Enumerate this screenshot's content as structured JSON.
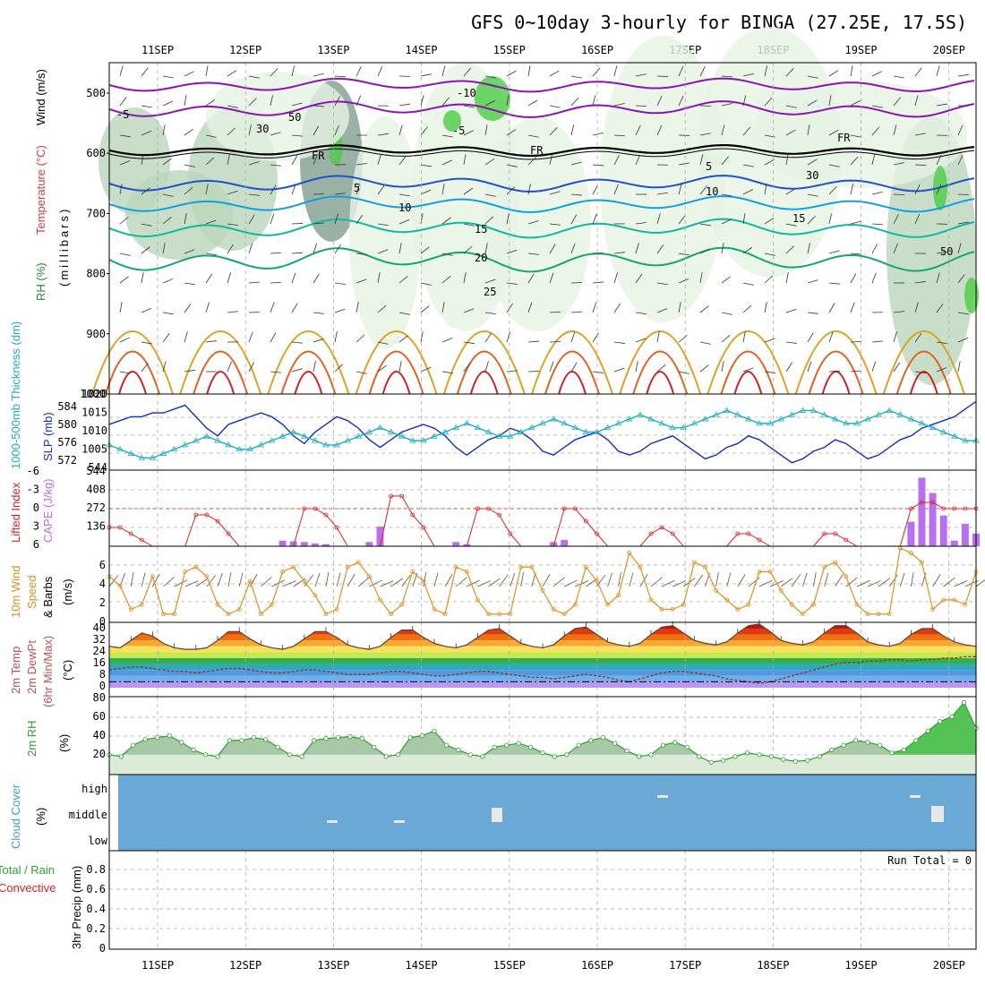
{
  "title": "GFS 0~10day 3-hourly for BINGA (27.25E, 17.5S)",
  "days": [
    "11SEP",
    "12SEP",
    "13SEP",
    "14SEP",
    "15SEP",
    "16SEP",
    "17SEP",
    "18SEP",
    "19SEP",
    "20SEP"
  ],
  "colors": {
    "frame": "#000000",
    "grid": "#aaaaaa",
    "rh_green": "#4ccc44",
    "rh_light": "#e6f2e2",
    "rh_mid": "#bcd6bc",
    "rh_dark": "#7f9f8f",
    "temp_cold": "#8a14b4",
    "freezing": "#000000",
    "temp_5": "#2050d0",
    "temp_10": "#10a0e0",
    "temp_15": "#10b8a0",
    "temp_20": "#10a870",
    "temp_25": "#e0a020",
    "temp_hot": "#e06020",
    "temp_very_hot": "#d02020",
    "slp": "#1030c0",
    "thickness": "#20b0c0",
    "lifted": "#e02020",
    "cape": "#b870f0",
    "wind": "#e09020",
    "barb": "#705030",
    "dewpt": "#8a3a20",
    "rh2m": "#30a030",
    "cloud": "#6aa8d6",
    "cloud_gap": "#e8e8e8"
  },
  "panels": {
    "upper": {
      "ylabel_rh": "RH (%)",
      "ylabel_temp": "Temperature (°C)",
      "ylabel_wind": "Wind (m/s)",
      "ylabel_p": "(millibars)",
      "ticks": [
        "500",
        "600",
        "700",
        "800",
        "900",
        "1000"
      ],
      "contour_labels": [
        "-10",
        "-5",
        "-5",
        "FR",
        "FR",
        "FR",
        "5",
        "5",
        "10",
        "10",
        "15",
        "15",
        "20",
        "25",
        "30",
        "30",
        "50",
        "50"
      ]
    },
    "slp": {
      "ylabel_thick": "1000-500mb Thickness (dm)",
      "ylabel_slp": "SLP (mb)",
      "thick_ticks": [
        "584",
        "580",
        "576",
        "572"
      ],
      "slp_ticks": [
        "1020",
        "1015",
        "1010",
        "1005",
        "544"
      ]
    },
    "cape": {
      "ylabel_li": "Lifted Index",
      "ylabel_cape": "CAPE (J/kg)",
      "li_ticks": [
        "-6",
        "-3",
        "0",
        "3",
        "6"
      ],
      "cape_ticks": [
        "544",
        "408",
        "272",
        "136"
      ]
    },
    "wind": {
      "ylabel_a": "10m Wind",
      "ylabel_b": "Speed",
      "ylabel_c": "& Barbs",
      "ylabel_unit": "(m/s)",
      "ticks": [
        "6",
        "4",
        "2",
        "0"
      ]
    },
    "temp": {
      "ylabel_a": "2m Temp",
      "ylabel_b": "2m DewPt",
      "ylabel_c": "(6hr Min/Max)",
      "ylabel_unit": "(°C)",
      "ticks": [
        "40",
        "32",
        "24",
        "16",
        "8",
        "0"
      ]
    },
    "rh": {
      "ylabel": "2m RH",
      "ylabel_unit": "(%)",
      "ticks": [
        "80",
        "60",
        "40",
        "20"
      ]
    },
    "cloud": {
      "ylabel": "Cloud Cover",
      "ylabel_unit": "(%)",
      "levels": [
        "high",
        "middle",
        "low"
      ]
    },
    "precip": {
      "ylabel_a": "Total / Rain",
      "ylabel_b": "Convective",
      "ylabel_c": "3hr Precip (mm)",
      "ticks": [
        "0.8",
        "0.6",
        "0.4",
        "0.2",
        "0"
      ],
      "run_total": "Run Total = 0"
    }
  },
  "chart_data": [
    {
      "type": "line",
      "name": "slp_thickness",
      "x_unit": "3-hour steps from 10SEP 12Z",
      "series": [
        {
          "name": "SLP (mb)",
          "ylim": [
            1002,
            1020
          ],
          "values": [
            1013,
            1014,
            1015,
            1015,
            1016,
            1016,
            1017,
            1018,
            1015,
            1012,
            1010,
            1013,
            1014,
            1015,
            1016,
            1015,
            1013,
            1010,
            1008,
            1011,
            1013,
            1015,
            1014,
            1012,
            1009,
            1007,
            1009,
            1011,
            1012,
            1013,
            1012,
            1010,
            1007,
            1005,
            1007,
            1009,
            1010,
            1012,
            1011,
            1009,
            1006,
            1005,
            1007,
            1009,
            1010,
            1011,
            1009,
            1006,
            1005,
            1006,
            1008,
            1009,
            1010,
            1008,
            1006,
            1004,
            1005,
            1007,
            1008,
            1010,
            1009,
            1007,
            1005,
            1003,
            1004,
            1006,
            1007,
            1009,
            1008,
            1006,
            1004,
            1005,
            1007,
            1009,
            1010,
            1012,
            1013,
            1014,
            1015,
            1017,
            1019
          ]
        },
        {
          "name": "Thickness (dm)",
          "ylim": [
            570,
            586
          ],
          "values": [
            575,
            574,
            573,
            572,
            572,
            573,
            574,
            575,
            576,
            577,
            576,
            575,
            574,
            574,
            575,
            576,
            577,
            578,
            577,
            576,
            575,
            575,
            576,
            577,
            578,
            579,
            578,
            577,
            576,
            576,
            577,
            578,
            579,
            580,
            579,
            578,
            577,
            577,
            578,
            579,
            580,
            581,
            580,
            579,
            578,
            578,
            579,
            580,
            581,
            582,
            581,
            580,
            579,
            579,
            580,
            581,
            582,
            583,
            582,
            581,
            580,
            580,
            581,
            582,
            583,
            583,
            582,
            581,
            580,
            580,
            581,
            582,
            583,
            582,
            581,
            580,
            579,
            578,
            577,
            576,
            576
          ]
        }
      ]
    },
    {
      "type": "bar",
      "name": "cape_lifted_index",
      "series": [
        {
          "name": "Lifted Index",
          "ylim": [
            6,
            -6
          ],
          "values": [
            3,
            3,
            4,
            5,
            6,
            6,
            6,
            6,
            1,
            1,
            2,
            4,
            6,
            6,
            6,
            6,
            6,
            6,
            0,
            0,
            1,
            3,
            6,
            6,
            6,
            6,
            -2,
            -2,
            1,
            3,
            6,
            6,
            6,
            6,
            0,
            0,
            1,
            4,
            6,
            6,
            6,
            6,
            0,
            0,
            2,
            4,
            6,
            6,
            6,
            6,
            4,
            3,
            4,
            6,
            6,
            6,
            6,
            6,
            4,
            4,
            5,
            6,
            6,
            6,
            6,
            6,
            4,
            4,
            5,
            6,
            6,
            6,
            6,
            6,
            0,
            -1,
            -1,
            0,
            0,
            0,
            0
          ]
        },
        {
          "name": "CAPE (J/kg)",
          "ylim": [
            0,
            544
          ],
          "values": [
            0,
            0,
            0,
            0,
            0,
            0,
            0,
            0,
            0,
            0,
            0,
            0,
            0,
            0,
            0,
            0,
            40,
            35,
            30,
            20,
            15,
            0,
            0,
            0,
            30,
            140,
            0,
            0,
            0,
            0,
            0,
            0,
            30,
            15,
            0,
            0,
            0,
            0,
            0,
            0,
            0,
            30,
            45,
            0,
            0,
            0,
            0,
            0,
            0,
            0,
            0,
            0,
            0,
            0,
            0,
            0,
            0,
            0,
            0,
            0,
            0,
            0,
            0,
            0,
            0,
            0,
            0,
            0,
            0,
            0,
            0,
            0,
            0,
            0,
            175,
            490,
            380,
            220,
            40,
            160,
            90
          ]
        }
      ]
    },
    {
      "type": "line",
      "name": "wind_10m",
      "ylim": [
        0,
        7
      ],
      "series": [
        {
          "name": "10m Wind Speed (m/s)",
          "values": [
            4.5,
            3.5,
            1,
            1.5,
            4.5,
            0.5,
            0.5,
            5,
            5.5,
            4.5,
            1.5,
            0.5,
            1,
            4,
            0.5,
            1.5,
            5,
            5.5,
            4,
            2.5,
            0.5,
            1,
            5.5,
            6,
            4.5,
            2,
            0.5,
            1.5,
            5,
            4,
            1,
            0.5,
            5.5,
            5,
            2,
            0.5,
            0.5,
            0.5,
            5.5,
            5.5,
            3,
            1,
            0.5,
            1.5,
            5.5,
            4,
            1.5,
            2.5,
            7,
            5.5,
            2,
            1,
            1,
            1.5,
            6,
            5.5,
            3,
            2,
            1,
            1.5,
            5,
            5,
            3,
            1.5,
            0.5,
            1.5,
            5.5,
            6,
            4.5,
            1.5,
            0.5,
            0.5,
            0.5,
            7.5,
            7,
            6,
            1,
            2,
            2,
            1.5,
            5
          ]
        }
      ]
    },
    {
      "type": "area",
      "name": "temp_2m",
      "ylim": [
        -4,
        40
      ],
      "series": [
        {
          "name": "2m Temp (°C)",
          "values": [
            24,
            23,
            28,
            33,
            31,
            26,
            23,
            22,
            22,
            23,
            28,
            34,
            34,
            29,
            25,
            23,
            22,
            24,
            29,
            34,
            34,
            30,
            25,
            23,
            22,
            24,
            30,
            35,
            35,
            30,
            26,
            24,
            23,
            25,
            30,
            35,
            36,
            31,
            26,
            24,
            23,
            25,
            31,
            36,
            37,
            32,
            27,
            25,
            24,
            26,
            32,
            37,
            38,
            33,
            28,
            26,
            25,
            27,
            33,
            38,
            39,
            34,
            28,
            26,
            25,
            27,
            33,
            38,
            38,
            33,
            27,
            25,
            24,
            26,
            32,
            36,
            36,
            31,
            27,
            25,
            24
          ]
        },
        {
          "name": "2m DewPt (°C)",
          "values": [
            8,
            9,
            10,
            10,
            9,
            8,
            7,
            7,
            6,
            7,
            8,
            9,
            9,
            8,
            7,
            6,
            6,
            7,
            8,
            8,
            7,
            6,
            5,
            5,
            5,
            6,
            7,
            7,
            6,
            5,
            4,
            4,
            5,
            6,
            7,
            7,
            6,
            5,
            4,
            3,
            3,
            2,
            3,
            4,
            5,
            4,
            3,
            1,
            0,
            2,
            4,
            6,
            7,
            7,
            6,
            5,
            4,
            2,
            1,
            0,
            -1,
            0,
            2,
            4,
            6,
            8,
            10,
            12,
            13,
            13,
            14,
            14,
            15,
            15,
            14,
            15,
            15,
            16,
            16,
            17,
            17
          ]
        }
      ]
    },
    {
      "type": "area",
      "name": "rh_2m",
      "ylim": [
        0,
        80
      ],
      "series": [
        {
          "name": "2m RH (%)",
          "values": [
            20,
            18,
            30,
            36,
            38,
            40,
            33,
            25,
            20,
            18,
            35,
            35,
            38,
            36,
            28,
            20,
            18,
            35,
            37,
            38,
            39,
            37,
            28,
            18,
            20,
            38,
            40,
            45,
            30,
            25,
            20,
            18,
            28,
            30,
            32,
            28,
            22,
            18,
            20,
            30,
            35,
            38,
            32,
            24,
            18,
            20,
            30,
            33,
            28,
            18,
            12,
            14,
            18,
            22,
            20,
            18,
            15,
            13,
            14,
            18,
            25,
            30,
            35,
            33,
            30,
            22,
            25,
            35,
            45,
            55,
            60,
            75,
            48
          ]
        }
      ]
    },
    {
      "type": "bar",
      "name": "precip_3hr",
      "ylim": [
        0,
        1
      ],
      "series": [
        {
          "name": "3hr Precip (mm)",
          "values": [
            0,
            0,
            0,
            0,
            0,
            0,
            0,
            0,
            0,
            0
          ]
        }
      ]
    }
  ]
}
